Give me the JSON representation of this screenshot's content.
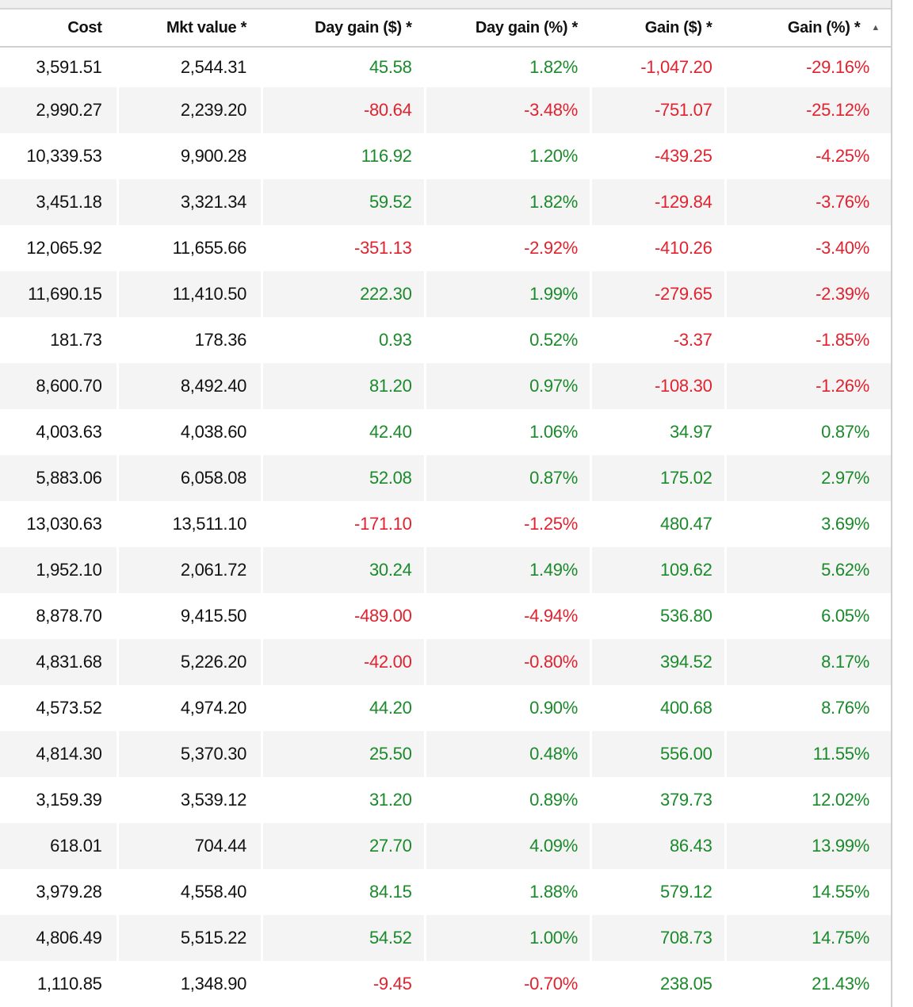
{
  "headers": [
    "Cost",
    "Mkt value *",
    "Day gain ($) *",
    "Day gain (%) *",
    "Gain ($) *",
    "Gain (%) *"
  ],
  "sort": {
    "column": "Gain (%) *",
    "direction": "ascending",
    "icon": "sort-ascending-icon"
  },
  "colors": {
    "positive": "#1a8a2a",
    "negative": "#e2222e"
  },
  "rows": [
    [
      "3,591.51",
      "2,544.31",
      "45.58",
      "1.82%",
      "-1,047.20",
      "-29.16%"
    ],
    [
      "2,990.27",
      "2,239.20",
      "-80.64",
      "-3.48%",
      "-751.07",
      "-25.12%"
    ],
    [
      "10,339.53",
      "9,900.28",
      "116.92",
      "1.20%",
      "-439.25",
      "-4.25%"
    ],
    [
      "3,451.18",
      "3,321.34",
      "59.52",
      "1.82%",
      "-129.84",
      "-3.76%"
    ],
    [
      "12,065.92",
      "11,655.66",
      "-351.13",
      "-2.92%",
      "-410.26",
      "-3.40%"
    ],
    [
      "11,690.15",
      "11,410.50",
      "222.30",
      "1.99%",
      "-279.65",
      "-2.39%"
    ],
    [
      "181.73",
      "178.36",
      "0.93",
      "0.52%",
      "-3.37",
      "-1.85%"
    ],
    [
      "8,600.70",
      "8,492.40",
      "81.20",
      "0.97%",
      "-108.30",
      "-1.26%"
    ],
    [
      "4,003.63",
      "4,038.60",
      "42.40",
      "1.06%",
      "34.97",
      "0.87%"
    ],
    [
      "5,883.06",
      "6,058.08",
      "52.08",
      "0.87%",
      "175.02",
      "2.97%"
    ],
    [
      "13,030.63",
      "13,511.10",
      "-171.10",
      "-1.25%",
      "480.47",
      "3.69%"
    ],
    [
      "1,952.10",
      "2,061.72",
      "30.24",
      "1.49%",
      "109.62",
      "5.62%"
    ],
    [
      "8,878.70",
      "9,415.50",
      "-489.00",
      "-4.94%",
      "536.80",
      "6.05%"
    ],
    [
      "4,831.68",
      "5,226.20",
      "-42.00",
      "-0.80%",
      "394.52",
      "8.17%"
    ],
    [
      "4,573.52",
      "4,974.20",
      "44.20",
      "0.90%",
      "400.68",
      "8.76%"
    ],
    [
      "4,814.30",
      "5,370.30",
      "25.50",
      "0.48%",
      "556.00",
      "11.55%"
    ],
    [
      "3,159.39",
      "3,539.12",
      "31.20",
      "0.89%",
      "379.73",
      "12.02%"
    ],
    [
      "618.01",
      "704.44",
      "27.70",
      "4.09%",
      "86.43",
      "13.99%"
    ],
    [
      "3,979.28",
      "4,558.40",
      "84.15",
      "1.88%",
      "579.12",
      "14.55%"
    ],
    [
      "4,806.49",
      "5,515.22",
      "54.52",
      "1.00%",
      "708.73",
      "14.75%"
    ],
    [
      "1,110.85",
      "1,348.90",
      "-9.45",
      "-0.70%",
      "238.05",
      "21.43%"
    ]
  ]
}
